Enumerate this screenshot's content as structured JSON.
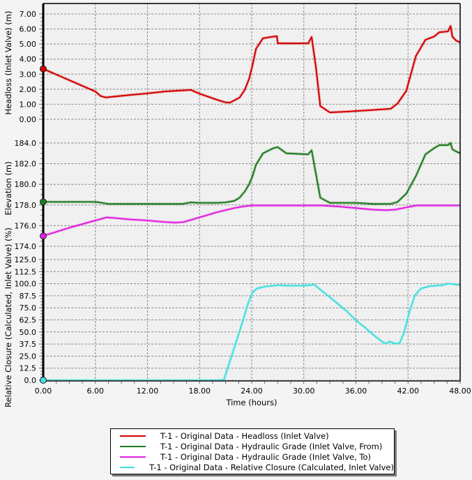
{
  "chart_data": {
    "type": "line",
    "title": "",
    "xlabel": "Time (hours)",
    "x_ticks": [
      "0.00",
      "6.00",
      "12.00",
      "18.00",
      "24.00",
      "30.00",
      "36.00",
      "42.00",
      "48.00"
    ],
    "xlim": [
      0,
      48
    ],
    "grid": true,
    "legend_position": "bottom",
    "panels": [
      {
        "id": "headloss",
        "ylabel": "Headloss (Inlet Valve) (m)",
        "ylim": [
          0,
          7
        ],
        "y_ticks": [
          "0.00",
          "1.00",
          "2.00",
          "3.00",
          "4.00",
          "5.00",
          "6.00",
          "7.00"
        ],
        "series": [
          {
            "name": "T-1 - Original Data - Headloss (Inlet Valve)",
            "color": "#d40000",
            "x": [
              0,
              2,
              4,
              6,
              6.6,
              7.2,
              8,
              10,
              12,
              14,
              16,
              17,
              18,
              20,
              21,
              21.5,
              22.6,
              23.2,
              23.7,
              24.1,
              24.5,
              25.3,
              26,
              26.9,
              27.0,
              28,
              29,
              30.5,
              30.9,
              31.4,
              31.9,
              33,
              34.9,
              36,
              38,
              40,
              40.8,
              41.8,
              42.9,
              44,
              45,
              45.6,
              46.6,
              46.9,
              47.1,
              47.5,
              48
            ],
            "values": [
              3.35,
              2.85,
              2.35,
              1.85,
              1.55,
              1.45,
              1.5,
              1.62,
              1.72,
              1.85,
              1.92,
              1.95,
              1.7,
              1.3,
              1.12,
              1.11,
              1.44,
              1.95,
              2.69,
              3.6,
              4.68,
              5.38,
              5.45,
              5.52,
              5.05,
              5.05,
              5.05,
              5.05,
              5.47,
              3.43,
              0.88,
              0.46,
              0.51,
              0.55,
              0.62,
              0.7,
              1.05,
              1.9,
              4.2,
              5.28,
              5.5,
              5.78,
              5.84,
              6.2,
              5.5,
              5.25,
              5.1
            ]
          }
        ]
      },
      {
        "id": "elevation",
        "ylabel": "Elevation (m)",
        "ylim": [
          174,
          186
        ],
        "y_ticks": [
          "174.0",
          "176.0",
          "178.0",
          "180.0",
          "182.0",
          "184.0"
        ],
        "series": [
          {
            "name": "T-1 - Original Data - Hydraulic Grade (Inlet Valve, From)",
            "color": "#1e7b1e",
            "x": [
              0,
              6,
              6.8,
              7.5,
              10,
              12,
              15,
              16,
              17,
              18,
              20,
              21,
              22,
              22.6,
              23.2,
              23.7,
              24.1,
              24.5,
              25.3,
              26.5,
              27.0,
              28,
              30.5,
              30.9,
              31.4,
              31.9,
              33,
              34.9,
              36,
              38,
              40,
              40.8,
              41.8,
              42.9,
              44,
              45,
              45.6,
              46.6,
              46.9,
              47.1,
              47.5,
              48
            ],
            "values": [
              178.3,
              178.3,
              178.2,
              178.1,
              178.1,
              178.1,
              178.1,
              178.1,
              178.25,
              178.2,
              178.2,
              178.25,
              178.4,
              178.7,
              179.3,
              180.0,
              180.8,
              181.9,
              183.0,
              183.5,
              183.6,
              183.0,
              182.9,
              183.3,
              181.0,
              178.7,
              178.2,
              178.2,
              178.2,
              178.1,
              178.1,
              178.3,
              179.1,
              180.8,
              182.9,
              183.5,
              183.8,
              183.8,
              184.0,
              183.4,
              183.2,
              183.0
            ]
          },
          {
            "name": "T-1 - Original Data - Hydraulic Grade (Inlet Valve, To)",
            "color": "#e020e0",
            "x": [
              0,
              3,
              6,
              7.3,
              8,
              10,
              12,
              14,
              15.2,
              16.2,
              18,
              20,
              22,
              23,
              24,
              26,
              28,
              30,
              32,
              34,
              36,
              38,
              39.5,
              40.5,
              42,
              43,
              44,
              46,
              48
            ],
            "values": [
              175.0,
              175.8,
              176.5,
              176.8,
              176.75,
              176.6,
              176.5,
              176.35,
              176.3,
              176.35,
              176.8,
              177.3,
              177.7,
              177.85,
              177.95,
              177.95,
              177.95,
              177.95,
              177.95,
              177.85,
              177.7,
              177.55,
              177.5,
              177.55,
              177.8,
              177.95,
              177.95,
              177.95,
              177.95
            ]
          }
        ]
      },
      {
        "id": "closure",
        "ylabel": "Relative Closure (Calculated, Inlet Valve) (%)",
        "ylim": [
          0,
          125
        ],
        "y_ticks": [
          "0.0",
          "12.5",
          "25.0",
          "37.5",
          "50.0",
          "62.5",
          "75.0",
          "87.5",
          "100.0",
          "112.5",
          "125.0"
        ],
        "series": [
          {
            "name": "T-1 - Original Data - Relative Closure (Calculated, Inlet Valve)",
            "color": "#40e0e0",
            "x": [
              0,
              10,
              20,
              20.8,
              21.5,
              22.3,
              23,
              23.6,
              24.1,
              24.6,
              25.5,
              27,
              28,
              30,
              30.7,
              31.2,
              33,
              35,
              36,
              37,
              38,
              39,
              39.4,
              39.9,
              40.5,
              41,
              41.5,
              42.2,
              42.8,
              43.5,
              44.5,
              46,
              46.6,
              47.2,
              48
            ],
            "values": [
              0,
              0,
              0,
              0.5,
              20,
              42,
              62,
              80,
              91,
              95,
              97,
              98.5,
              98,
              98,
              98.5,
              99,
              86,
              71,
              62,
              55,
              47,
              40,
              38,
              40,
              38,
              38,
              48,
              72,
              88,
              95,
              97.5,
              98.5,
              100,
              99.5,
              98.5
            ]
          }
        ]
      }
    ]
  },
  "legend": {
    "items": [
      {
        "label": "T-1 - Original Data - Headloss (Inlet Valve)",
        "color": "#d40000"
      },
      {
        "label": "T-1 - Original Data - Hydraulic Grade (Inlet Valve, From)",
        "color": "#1e7b1e"
      },
      {
        "label": "T-1 - Original Data - Hydraulic Grade (Inlet Valve, To)",
        "color": "#e020e0"
      },
      {
        "label": "T-1 - Original Data - Relative Closure (Calculated, Inlet Valve)",
        "color": "#40e0e0"
      }
    ]
  }
}
